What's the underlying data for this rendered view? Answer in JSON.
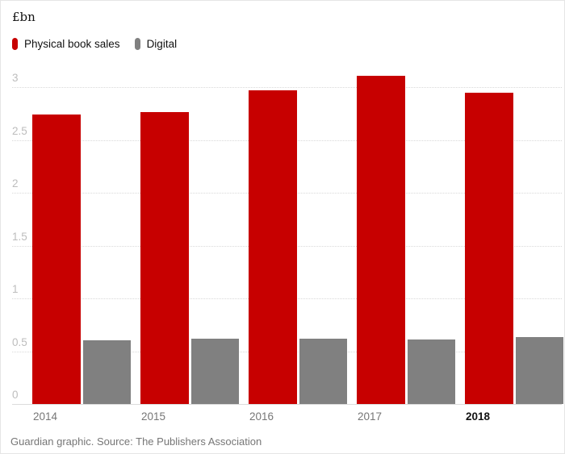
{
  "chart": {
    "title": "£bn",
    "source": "Guardian graphic. Source: The Publishers Association"
  },
  "chart_data": {
    "type": "bar",
    "title": "£bn",
    "categories": [
      "2014",
      "2015",
      "2016",
      "2017",
      "2018"
    ],
    "series": [
      {
        "name": "Physical book sales",
        "color": "#c70000",
        "values": [
          2.74,
          2.76,
          2.97,
          3.11,
          2.95
        ]
      },
      {
        "name": "Digital",
        "color": "#808080",
        "values": [
          0.6,
          0.62,
          0.62,
          0.61,
          0.63
        ]
      }
    ],
    "ylabel": "£bn",
    "ylim": [
      0,
      3.15
    ],
    "yticks": [
      0,
      0.5,
      1,
      1.5,
      2,
      2.5,
      3
    ],
    "ytick_labels": [
      "0",
      "0.5",
      "1",
      "1.5",
      "2",
      "2.5",
      "3"
    ],
    "grid": "horizontal-dotted",
    "legend_position": "top-left",
    "highlighted_category": "2018",
    "source": "Guardian graphic. Source: The Publishers Association"
  },
  "style": {
    "physical_color": "#c70000",
    "digital_color": "#808080",
    "ytick_color": "#bdbdbd",
    "xtick_color": "#767676",
    "highlight_color": "#121212",
    "grid_color": "#d9d9d9",
    "footer_color": "#767676"
  }
}
